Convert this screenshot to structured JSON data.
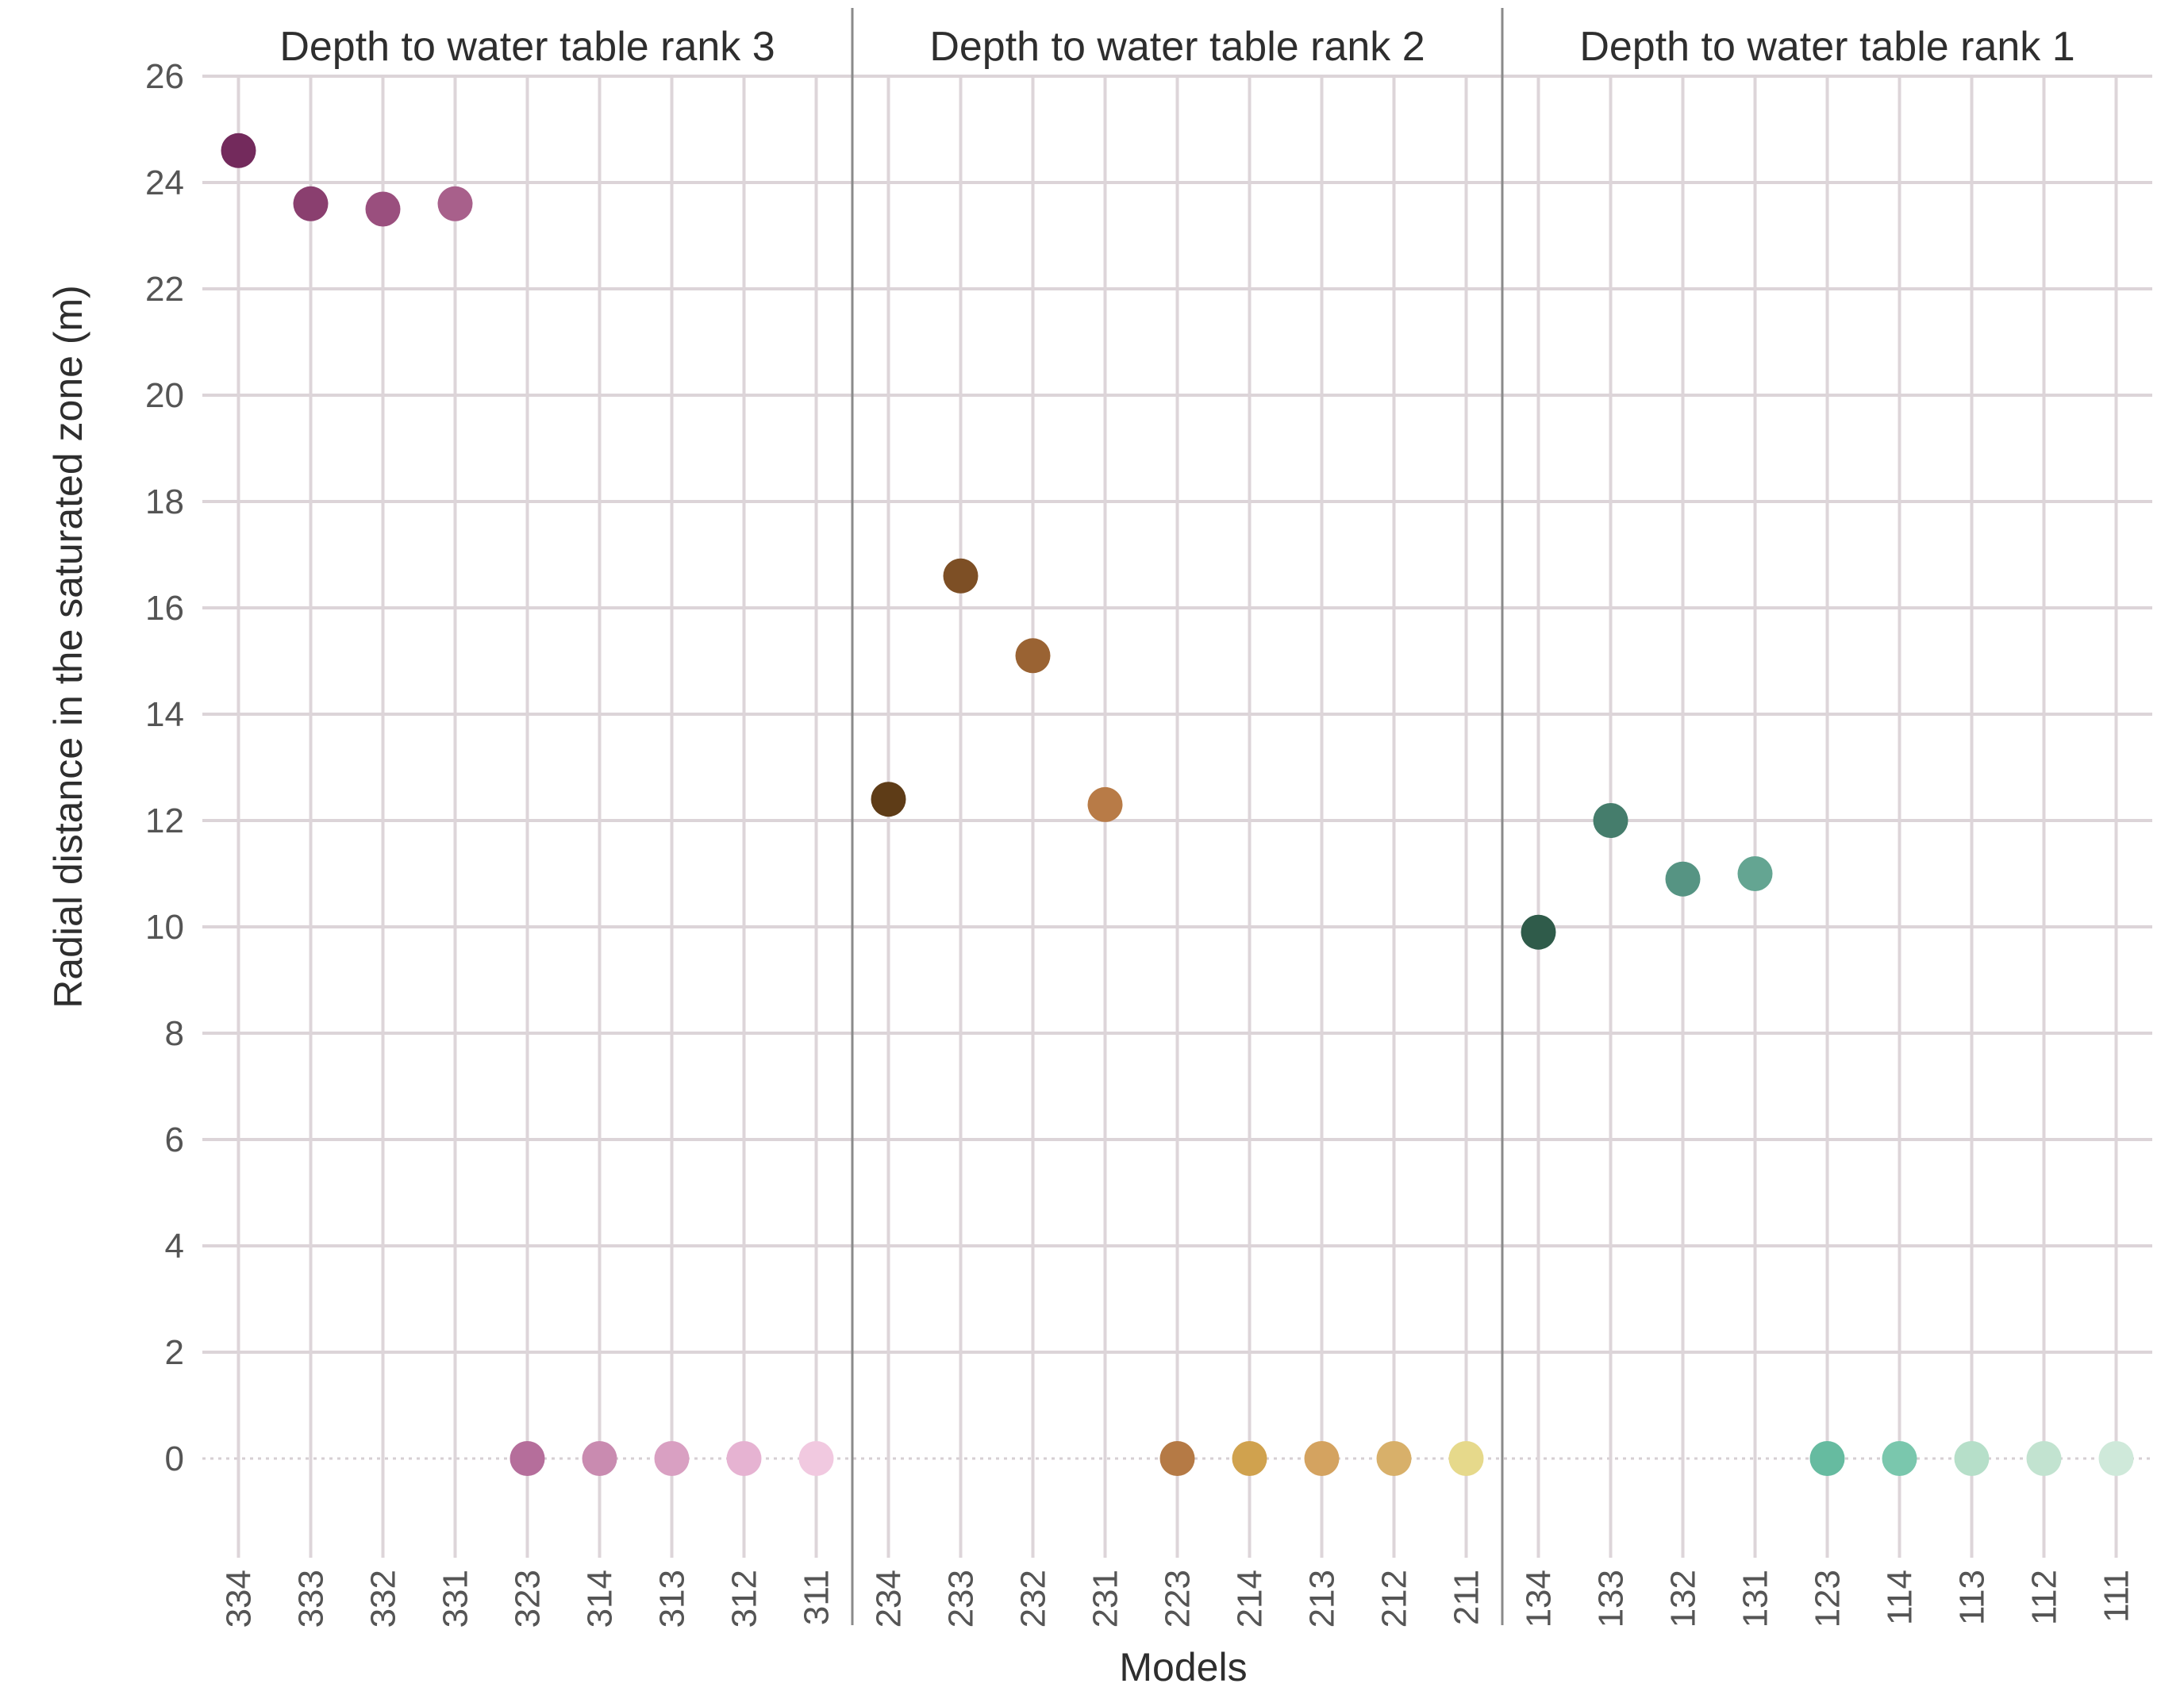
{
  "chart_data": {
    "type": "scatter",
    "xlabel": "Models",
    "ylabel": "Radial distance in the saturated zone (m)",
    "ylim": [
      -2,
      26
    ],
    "yticks": [
      0,
      2,
      4,
      6,
      8,
      10,
      12,
      14,
      16,
      18,
      20,
      22,
      24,
      26
    ],
    "grid": true,
    "panels": [
      {
        "title": "Depth to water table rank 3",
        "points": [
          {
            "model": "334",
            "value": 24.6,
            "color": "#732a5c"
          },
          {
            "model": "333",
            "value": 23.6,
            "color": "#8a3f6f"
          },
          {
            "model": "332",
            "value": 23.5,
            "color": "#9a4f7e"
          },
          {
            "model": "331",
            "value": 23.6,
            "color": "#a8608b"
          },
          {
            "model": "323",
            "value": 0,
            "color": "#b56e9b"
          },
          {
            "model": "314",
            "value": 0,
            "color": "#c98bb0"
          },
          {
            "model": "313",
            "value": 0,
            "color": "#d9a0c2"
          },
          {
            "model": "312",
            "value": 0,
            "color": "#e6b3d2"
          },
          {
            "model": "311",
            "value": 0,
            "color": "#f1c9e0"
          }
        ]
      },
      {
        "title": "Depth to water table rank 2",
        "points": [
          {
            "model": "234",
            "value": 12.4,
            "color": "#5e3c17"
          },
          {
            "model": "233",
            "value": 16.6,
            "color": "#7d4f25"
          },
          {
            "model": "232",
            "value": 15.1,
            "color": "#9a6333"
          },
          {
            "model": "231",
            "value": 12.3,
            "color": "#b87b47"
          },
          {
            "model": "223",
            "value": 0,
            "color": "#b57a45"
          },
          {
            "model": "214",
            "value": 0,
            "color": "#d0a24e"
          },
          {
            "model": "213",
            "value": 0,
            "color": "#d4a360"
          },
          {
            "model": "212",
            "value": 0,
            "color": "#d8b06a"
          },
          {
            "model": "211",
            "value": 0,
            "color": "#e6d98b"
          }
        ]
      },
      {
        "title": "Depth to water table rank 1",
        "points": [
          {
            "model": "134",
            "value": 9.9,
            "color": "#2f5b4a"
          },
          {
            "model": "133",
            "value": 12.0,
            "color": "#457d6c"
          },
          {
            "model": "132",
            "value": 10.9,
            "color": "#569483"
          },
          {
            "model": "131",
            "value": 11.0,
            "color": "#64a592"
          },
          {
            "model": "123",
            "value": 0,
            "color": "#66bba0"
          },
          {
            "model": "114",
            "value": 0,
            "color": "#7ac7ad"
          },
          {
            "model": "113",
            "value": 0,
            "color": "#b6dfc9"
          },
          {
            "model": "112",
            "value": 0,
            "color": "#c2e3d0"
          },
          {
            "model": "111",
            "value": 0,
            "color": "#cfe9da"
          }
        ]
      }
    ]
  }
}
